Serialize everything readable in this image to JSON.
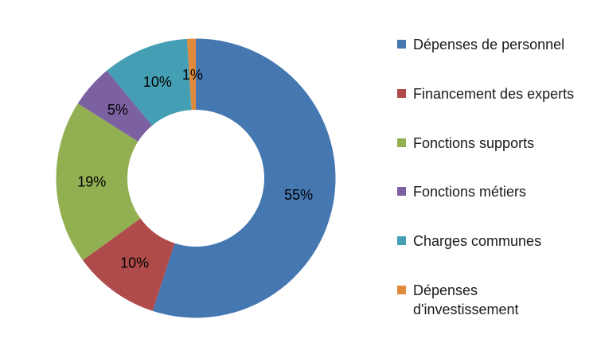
{
  "background_color": "#ffffff",
  "chart_data": {
    "type": "pie",
    "subtype": "donut",
    "title": "",
    "label_format": "percent",
    "direction": "clockwise",
    "start_angle_deg": 0,
    "inner_radius_ratio": 0.49,
    "legend_position": "right",
    "data_label_color": "#000000",
    "legend_text_color": "#1a1a1a",
    "slices": [
      {
        "label": "Dépenses de personnel",
        "value": 55,
        "display": "55%",
        "color": "#4577B1"
      },
      {
        "label": "Financement des experts",
        "value": 10,
        "display": "10%",
        "color": "#B04B4B"
      },
      {
        "label": "Fonctions supports",
        "value": 19,
        "display": "19%",
        "color": "#92AF51"
      },
      {
        "label": "Fonctions métiers",
        "value": 5,
        "display": "5%",
        "color": "#7C61A2"
      },
      {
        "label": "Charges communes",
        "value": 10,
        "display": "10%",
        "color": "#449FB4"
      },
      {
        "label": "Dépenses d'investissement",
        "value": 1,
        "display": "1%",
        "color": "#E08B3C"
      }
    ]
  }
}
